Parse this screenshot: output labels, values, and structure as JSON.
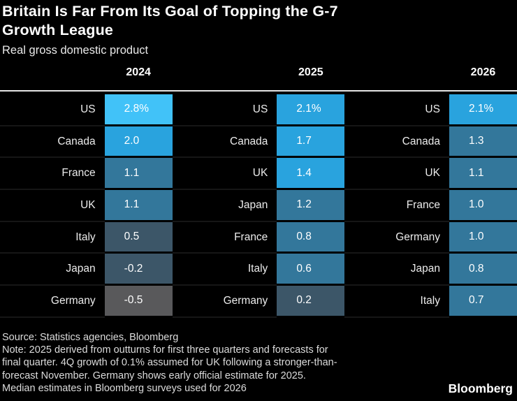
{
  "title": {
    "line1": "Britain Is Far From Its Goal of Topping the G-7",
    "line2": "Growth League"
  },
  "subtitle": "Real gross domestic product",
  "colors": {
    "background": "#000000",
    "rule": "#e6e6e6",
    "scale_lightest": "#41c2f8",
    "scale_bright": "#29a3de",
    "scale_medium": "#33779b",
    "scale_dark": "#3c5668",
    "scale_grey": "#59595b"
  },
  "chart_data": {
    "type": "heatmap",
    "title": "Britain Is Far From Its Goal of Topping the G-7 Growth League",
    "subtitle": "Real gross domestic product",
    "unit": "percent real GDP growth",
    "legend_position": "none",
    "columns": [
      {
        "year": "2024",
        "entries": [
          {
            "country": "US",
            "value": "2.8%",
            "numeric": 2.8,
            "color": "#41c2f8"
          },
          {
            "country": "Canada",
            "value": "2.0",
            "numeric": 2.0,
            "color": "#29a3de"
          },
          {
            "country": "France",
            "value": "1.1",
            "numeric": 1.1,
            "color": "#33779b"
          },
          {
            "country": "UK",
            "value": "1.1",
            "numeric": 1.1,
            "color": "#33779b"
          },
          {
            "country": "Italy",
            "value": "0.5",
            "numeric": 0.5,
            "color": "#3c5668"
          },
          {
            "country": "Japan",
            "value": "-0.2",
            "numeric": -0.2,
            "color": "#3c5668"
          },
          {
            "country": "Germany",
            "value": "-0.5",
            "numeric": -0.5,
            "color": "#59595b"
          }
        ]
      },
      {
        "year": "2025",
        "entries": [
          {
            "country": "US",
            "value": "2.1%",
            "numeric": 2.1,
            "color": "#29a3de"
          },
          {
            "country": "Canada",
            "value": "1.7",
            "numeric": 1.7,
            "color": "#29a3de"
          },
          {
            "country": "UK",
            "value": "1.4",
            "numeric": 1.4,
            "color": "#29a3de"
          },
          {
            "country": "Japan",
            "value": "1.2",
            "numeric": 1.2,
            "color": "#33779b"
          },
          {
            "country": "France",
            "value": "0.8",
            "numeric": 0.8,
            "color": "#33779b"
          },
          {
            "country": "Italy",
            "value": "0.6",
            "numeric": 0.6,
            "color": "#33779b"
          },
          {
            "country": "Germany",
            "value": "0.2",
            "numeric": 0.2,
            "color": "#3c5668"
          }
        ]
      },
      {
        "year": "2026",
        "entries": [
          {
            "country": "US",
            "value": "2.1%",
            "numeric": 2.1,
            "color": "#29a3de"
          },
          {
            "country": "Canada",
            "value": "1.3",
            "numeric": 1.3,
            "color": "#33779b"
          },
          {
            "country": "UK",
            "value": "1.1",
            "numeric": 1.1,
            "color": "#33779b"
          },
          {
            "country": "France",
            "value": "1.0",
            "numeric": 1.0,
            "color": "#33779b"
          },
          {
            "country": "Germany",
            "value": "1.0",
            "numeric": 1.0,
            "color": "#33779b"
          },
          {
            "country": "Japan",
            "value": "0.8",
            "numeric": 0.8,
            "color": "#33779b"
          },
          {
            "country": "Italy",
            "value": "0.7",
            "numeric": 0.7,
            "color": "#33779b"
          }
        ]
      }
    ]
  },
  "footer": {
    "lines": [
      "Source: Statistics agencies, Bloomberg",
      "Note: 2025 derived from outturns for first three quarters and forecasts for",
      "final quarter. 4Q growth of 0.1% assumed for UK following a stronger-than-",
      "forecast November. Germany shows early official estimate for 2025.",
      "Median estimates in Bloomberg surveys used for 2026"
    ]
  },
  "logo": "Bloomberg"
}
